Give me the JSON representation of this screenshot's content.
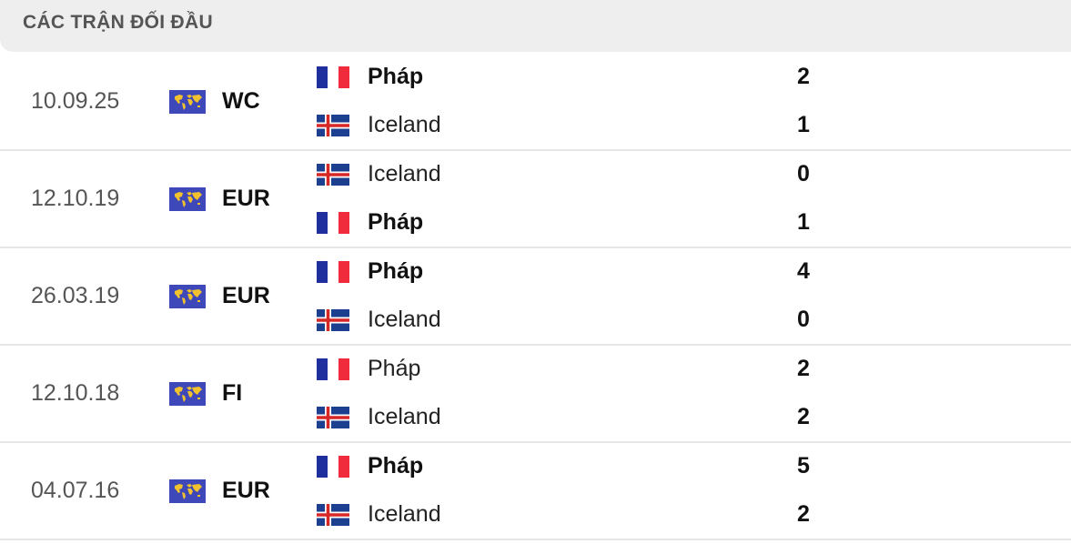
{
  "header": {
    "title": "CÁC TRẬN ĐỐI ĐẦU"
  },
  "colors": {
    "france_blue": "#1f2f9e",
    "france_red": "#ef2b3c",
    "iceland_blue": "#1d3f8f",
    "iceland_red": "#d72828",
    "competition_icon_bg": "#3e48b8",
    "competition_icon_fg": "#f2c12e"
  },
  "matches": [
    {
      "date": "10.09.25",
      "competition": "WC",
      "competition_icon": "world-map-icon",
      "home": {
        "name": "Pháp",
        "flag": "france",
        "score": "2",
        "winner": true
      },
      "away": {
        "name": "Iceland",
        "flag": "iceland",
        "score": "1",
        "winner": false
      }
    },
    {
      "date": "12.10.19",
      "competition": "EUR",
      "competition_icon": "world-map-icon",
      "home": {
        "name": "Iceland",
        "flag": "iceland",
        "score": "0",
        "winner": false
      },
      "away": {
        "name": "Pháp",
        "flag": "france",
        "score": "1",
        "winner": true
      }
    },
    {
      "date": "26.03.19",
      "competition": "EUR",
      "competition_icon": "world-map-icon",
      "home": {
        "name": "Pháp",
        "flag": "france",
        "score": "4",
        "winner": true
      },
      "away": {
        "name": "Iceland",
        "flag": "iceland",
        "score": "0",
        "winner": false
      }
    },
    {
      "date": "12.10.18",
      "competition": "FI",
      "competition_icon": "world-map-icon",
      "home": {
        "name": "Pháp",
        "flag": "france",
        "score": "2",
        "winner": false
      },
      "away": {
        "name": "Iceland",
        "flag": "iceland",
        "score": "2",
        "winner": false
      }
    },
    {
      "date": "04.07.16",
      "competition": "EUR",
      "competition_icon": "world-map-icon",
      "home": {
        "name": "Pháp",
        "flag": "france",
        "score": "5",
        "winner": true
      },
      "away": {
        "name": "Iceland",
        "flag": "iceland",
        "score": "2",
        "winner": false
      }
    }
  ]
}
